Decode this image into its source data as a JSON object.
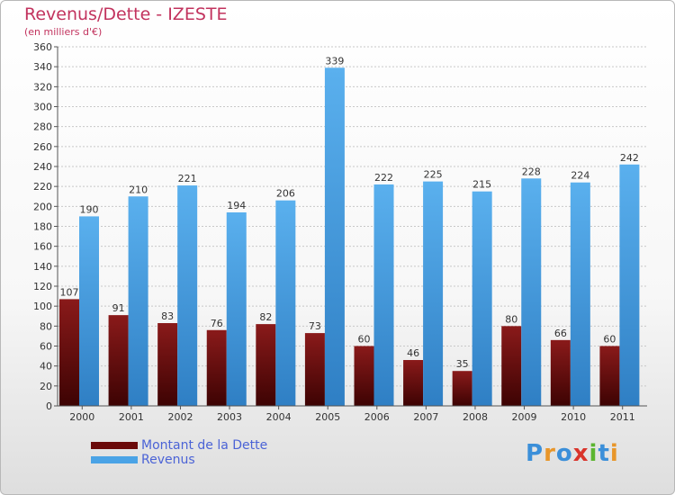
{
  "title": "Revenus/Dette - IZESTE",
  "subtitle": "(en milliers d'€)",
  "legend": [
    {
      "label": "Montant de la Dette",
      "color": "#6b0a0a"
    },
    {
      "label": "Revenus",
      "color": "#4aa3e6"
    }
  ],
  "logo": {
    "text": "Proxiti",
    "letters": [
      "P",
      "r",
      "o",
      "x",
      "i",
      "t",
      "i"
    ],
    "colors": [
      "#3b8fd9",
      "#e8962a",
      "#3b8fd9",
      "#d9342b",
      "#5cb531",
      "#3b8fd9",
      "#e8962a"
    ]
  },
  "chart_data": {
    "type": "bar",
    "title": "Revenus/Dette - IZESTE",
    "ylabel": "(en milliers d'€)",
    "categories": [
      "2000",
      "2001",
      "2002",
      "2003",
      "2004",
      "2005",
      "2006",
      "2007",
      "2008",
      "2009",
      "2010",
      "2011"
    ],
    "series": [
      {
        "name": "Montant de la Dette",
        "color": "#6b0a0a",
        "values": [
          107,
          91,
          83,
          76,
          82,
          73,
          60,
          46,
          35,
          80,
          66,
          60
        ]
      },
      {
        "name": "Revenus",
        "color": "#4aa3e6",
        "values": [
          190,
          210,
          221,
          194,
          206,
          339,
          222,
          225,
          215,
          228,
          224,
          242
        ]
      }
    ],
    "yticks": [
      0,
      20,
      40,
      60,
      80,
      100,
      120,
      140,
      160,
      180,
      200,
      220,
      240,
      260,
      280,
      300,
      320,
      340,
      360
    ],
    "ylim": [
      0,
      360
    ],
    "grid": true,
    "legend_position": "bottom-left"
  }
}
